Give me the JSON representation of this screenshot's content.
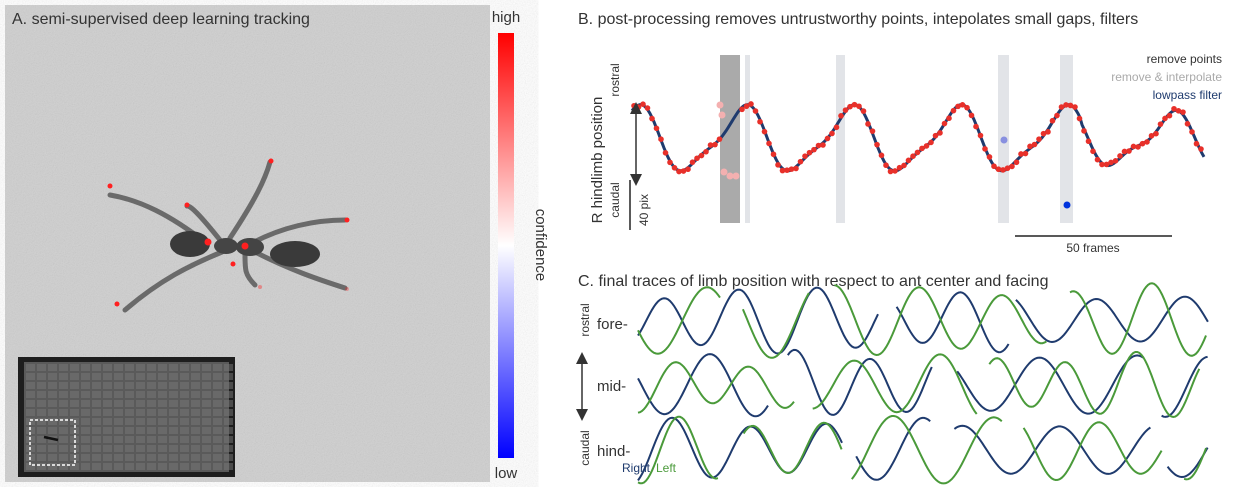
{
  "panel_a": {
    "title": "A. semi-supervised deep learning tracking"
  },
  "colorbar": {
    "high": "high",
    "low": "low",
    "label": "confidence"
  },
  "panel_b": {
    "title": "B. post-processing removes untrustworthy points, intepolates small gaps, filters",
    "y_label": "R hindlimb position",
    "rostral": "rostral",
    "caudal": "caudal",
    "y_scale": "40 pix",
    "x_scale": "50 frames",
    "legend": [
      "remove points",
      "remove & interpolate",
      "lowpass filter"
    ]
  },
  "panel_c": {
    "title": "C. final traces of limb position with respect to ant center and facing",
    "rostral": "rostral",
    "caudal": "caudal",
    "rows": [
      "fore-",
      "mid-",
      "hind-"
    ],
    "legend": [
      "Right",
      "Left"
    ]
  }
}
